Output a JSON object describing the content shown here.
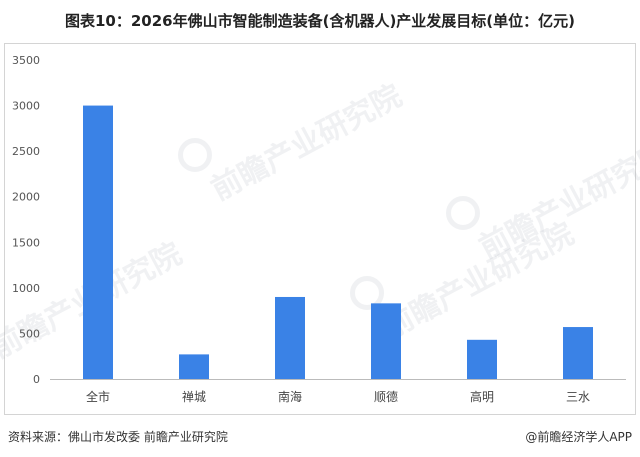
{
  "title": "图表10：2026年佛山市智能制造装备(含机器人)产业发展目标(单位：亿元)",
  "footer": {
    "source": "资料来源：佛山市发改委 前瞻产业研究院",
    "brand": "@前瞻经济学人APP"
  },
  "watermark": {
    "text": "前瞻产业研究院"
  },
  "chart_data": {
    "type": "bar",
    "categories": [
      "全市",
      "禅城",
      "南海",
      "顺德",
      "高明",
      "三水"
    ],
    "values": [
      3000,
      270,
      900,
      830,
      430,
      570
    ],
    "yticks": [
      "0",
      "500",
      "1000",
      "1500",
      "2000",
      "2500",
      "3000",
      "3500"
    ],
    "ylim": [
      0,
      3500
    ],
    "grid": false,
    "bar_color": "#3a82e6",
    "axis_color": "#bbbbbb"
  }
}
